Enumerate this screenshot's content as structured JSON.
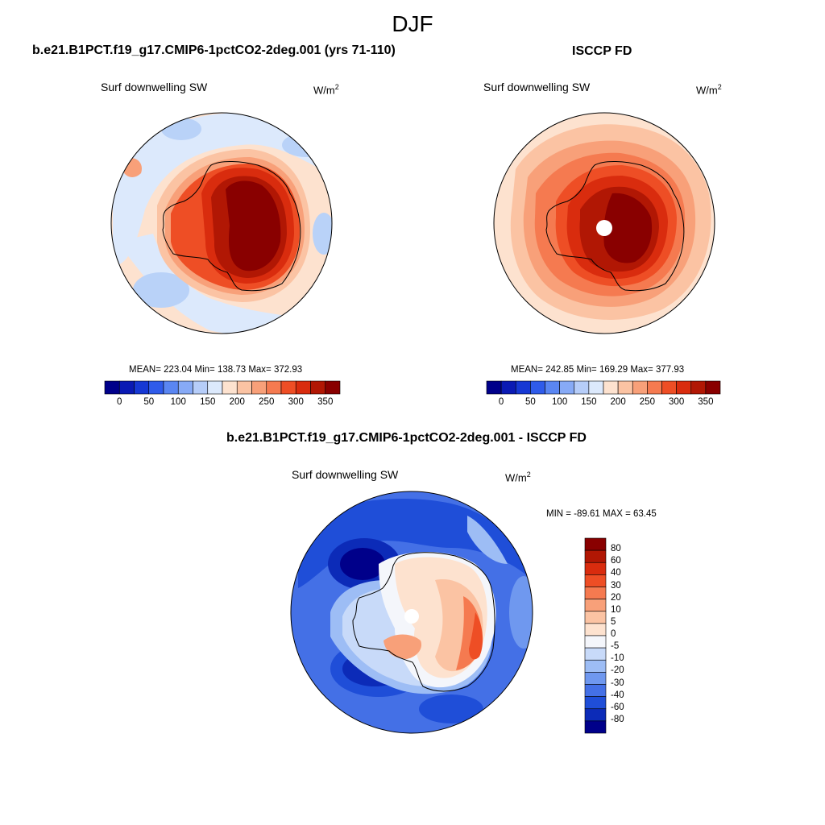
{
  "figure": {
    "title": "DJF",
    "panels": [
      {
        "title": "b.e21.B1PCT.f19_g17.CMIP6-1pctCO2-2deg.001 (yrs 71-110)",
        "variable": "Surf downwelling SW",
        "unit_base": "W/m",
        "unit_exp": "2",
        "stats": "MEAN= 223.04  Min= 138.73  Max= 372.93"
      },
      {
        "title": "ISCCP FD",
        "variable": "Surf downwelling SW",
        "unit_base": "W/m",
        "unit_exp": "2",
        "stats": "MEAN= 242.85  Min= 169.29  Max= 377.93"
      },
      {
        "title": "b.e21.B1PCT.f19_g17.CMIP6-1pctCO2-2deg.001 - ISCCP FD",
        "variable": "Surf downwelling SW",
        "unit_base": "W/m",
        "unit_exp": "2",
        "stats": "MIN = -89.61 MAX =  63.45"
      }
    ]
  },
  "chart_data": [
    {
      "type": "heatmap",
      "title": "b.e21.B1PCT.f19_g17.CMIP6-1pctCO2-2deg.001 (yrs 71-110)",
      "variable": "Surf downwelling SW",
      "units": "W/m2",
      "projection": "south polar stereographic",
      "mean": 223.04,
      "min": 138.73,
      "max": 372.93,
      "colorbar": {
        "orientation": "horizontal",
        "tick_labels": [
          "0",
          "50",
          "100",
          "150",
          "200",
          "250",
          "300",
          "350"
        ],
        "colors": [
          "#00008a",
          "#0a1ab4",
          "#1638d4",
          "#2f5bea",
          "#5a86f2",
          "#87aaf6",
          "#b6cdf9",
          "#dce9fc",
          "#fde2cf",
          "#fbc3a3",
          "#f8a079",
          "#f57a50",
          "#ee4e25",
          "#d92c0e",
          "#b11704",
          "#890000"
        ]
      }
    },
    {
      "type": "heatmap",
      "title": "ISCCP FD",
      "variable": "Surf downwelling SW",
      "units": "W/m2",
      "projection": "south polar stereographic",
      "mean": 242.85,
      "min": 169.29,
      "max": 377.93,
      "colorbar": {
        "orientation": "horizontal",
        "tick_labels": [
          "0",
          "50",
          "100",
          "150",
          "200",
          "250",
          "300",
          "350"
        ],
        "colors": [
          "#00008a",
          "#0a1ab4",
          "#1638d4",
          "#2f5bea",
          "#5a86f2",
          "#87aaf6",
          "#b6cdf9",
          "#dce9fc",
          "#fde2cf",
          "#fbc3a3",
          "#f8a079",
          "#f57a50",
          "#ee4e25",
          "#d92c0e",
          "#b11704",
          "#890000"
        ]
      }
    },
    {
      "type": "heatmap",
      "title": "b.e21.B1PCT.f19_g17.CMIP6-1pctCO2-2deg.001 - ISCCP FD",
      "variable": "Surf downwelling SW",
      "units": "W/m2",
      "projection": "south polar stereographic",
      "min": -89.61,
      "max": 63.45,
      "colorbar": {
        "orientation": "vertical",
        "tick_labels": [
          "80",
          "60",
          "40",
          "30",
          "20",
          "10",
          "5",
          "0",
          "-5",
          "-10",
          "-20",
          "-30",
          "-40",
          "-60",
          "-80"
        ],
        "colors": [
          "#890000",
          "#b11704",
          "#d92c0e",
          "#ee4e25",
          "#f57a50",
          "#f8a079",
          "#fbc3a3",
          "#fde2cf",
          "#f4f6fb",
          "#c8daf9",
          "#9dbdf5",
          "#6f98ef",
          "#4470e6",
          "#1f4ed8",
          "#0c2bb8",
          "#00008a"
        ]
      }
    }
  ],
  "palette": {
    "ocean_low": "#b9d2f8",
    "ocean_mid": "#dce9fc",
    "ocean_warm": "#fde2cf",
    "warm": "#f8a079",
    "hot": "#ee4e25",
    "very_hot": "#b11704",
    "max": "#890000",
    "cold": "#2f5bea",
    "very_cold": "#0a1ab4"
  }
}
